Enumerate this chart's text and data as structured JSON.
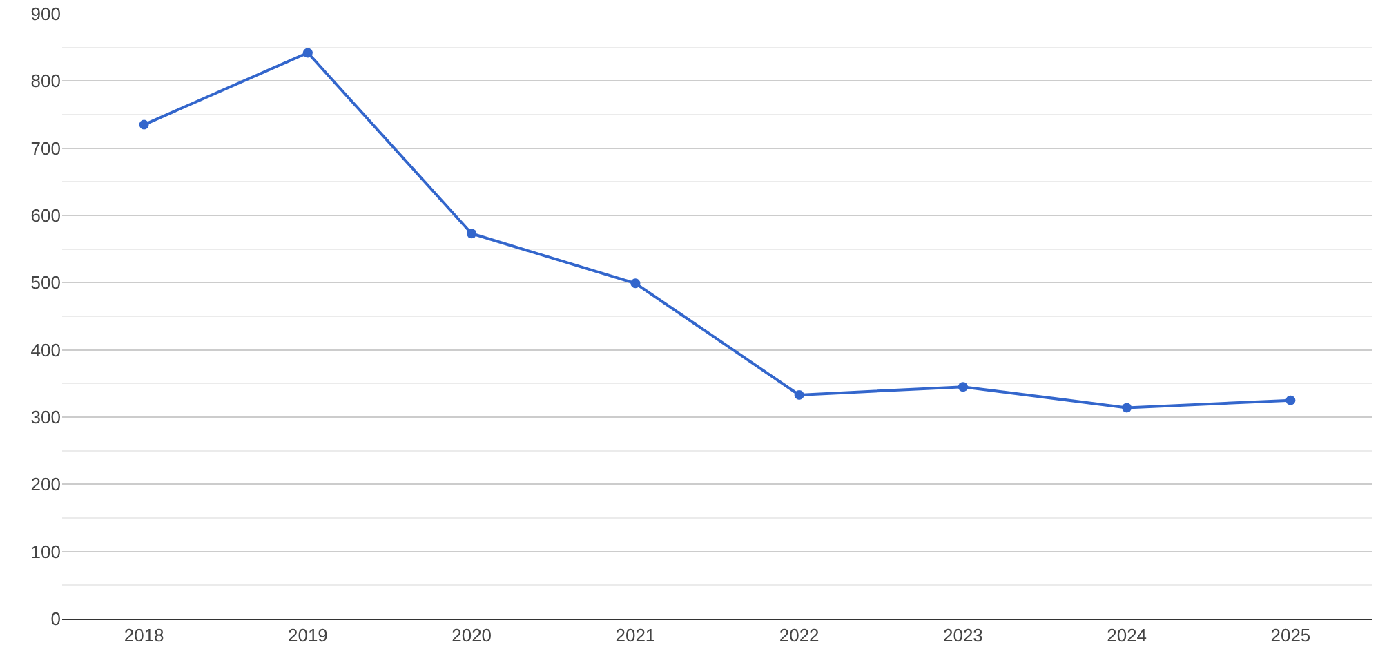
{
  "chart_data": {
    "type": "line",
    "categories": [
      "2018",
      "2019",
      "2020",
      "2021",
      "2022",
      "2023",
      "2024",
      "2025"
    ],
    "series": [
      {
        "color": "#3366cc",
        "values": [
          735,
          842,
          573,
          499,
          333,
          345,
          314,
          325
        ]
      }
    ],
    "ylim": [
      0,
      900
    ],
    "yticks": [
      0,
      100,
      200,
      300,
      400,
      500,
      600,
      700,
      800,
      900
    ],
    "grid": "y",
    "marker": "circle",
    "line_style": "solid"
  }
}
